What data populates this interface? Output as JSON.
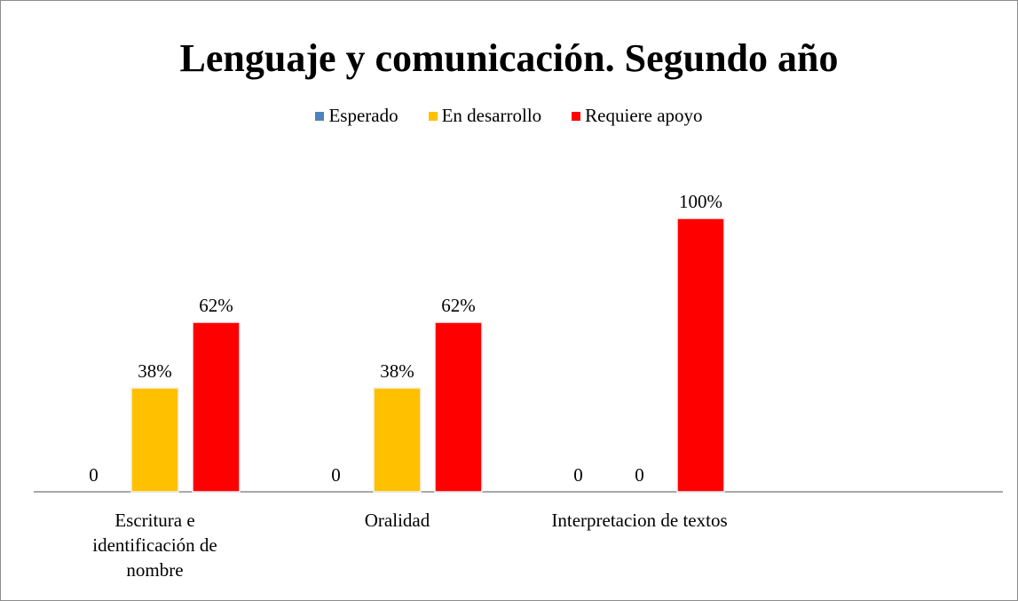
{
  "chart_data": {
    "type": "bar",
    "title": "Lenguaje y comunicación. Segundo año",
    "categories": [
      "Escritura e identificación de nombre",
      "Oralidad",
      "Interpretacion de textos",
      null
    ],
    "series": [
      {
        "name": "Esperado",
        "color": "#4f81bd",
        "values": [
          0,
          0,
          0,
          null
        ],
        "value_labels": [
          "0",
          "0",
          "0",
          null
        ]
      },
      {
        "name": "En desarrollo",
        "color": "#ffc000",
        "values": [
          38,
          38,
          0,
          null
        ],
        "value_labels": [
          "38%",
          "38%",
          "0",
          null
        ]
      },
      {
        "name": "Requiere apoyo",
        "color": "#ff0000",
        "values": [
          62,
          62,
          100,
          null
        ],
        "value_labels": [
          "62%",
          "62%",
          "100%",
          null
        ]
      }
    ],
    "ylim": [
      0,
      100
    ],
    "legend": "top",
    "grid": false
  }
}
